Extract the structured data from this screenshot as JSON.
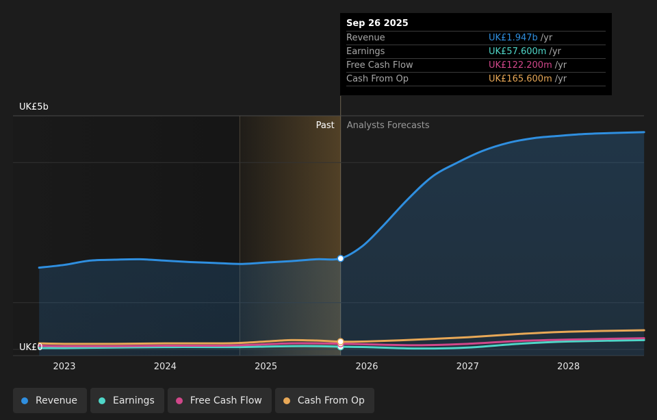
{
  "tooltip": {
    "date": "Sep 26 2025",
    "rows": [
      {
        "label": "Revenue",
        "value": "UK£1.947b",
        "unit": "/yr",
        "color": "#2f8fe0"
      },
      {
        "label": "Earnings",
        "value": "UK£57.600m",
        "unit": "/yr",
        "color": "#4fd6c8"
      },
      {
        "label": "Free Cash Flow",
        "value": "UK£122.200m",
        "unit": "/yr",
        "color": "#d1478a"
      },
      {
        "label": "Cash From Op",
        "value": "UK£165.600m",
        "unit": "/yr",
        "color": "#e8a857"
      }
    ]
  },
  "legend": [
    {
      "label": "Revenue",
      "color": "#2f8fe0"
    },
    {
      "label": "Earnings",
      "color": "#4fd6c8"
    },
    {
      "label": "Free Cash Flow",
      "color": "#d1478a"
    },
    {
      "label": "Cash From Op",
      "color": "#e8a857"
    }
  ],
  "chart_data": {
    "type": "area",
    "y_tick_labels": [
      "UK£5b",
      "UK£0"
    ],
    "ylim": [
      0,
      5
    ],
    "y_unit": "UK£ billions",
    "x_ticks": [
      2023,
      2024,
      2025,
      2026,
      2027,
      2028
    ],
    "xlim": [
      2022.5,
      2028.75
    ],
    "past_label": "Past",
    "forecast_label": "Analysts Forecasts",
    "past_end": 2025.74,
    "highlight_start": 2024.74,
    "grid": true,
    "legend_position": "bottom-left",
    "series": [
      {
        "name": "Revenue",
        "color": "#2f8fe0",
        "x": [
          2022.75,
          2023.0,
          2023.25,
          2023.5,
          2023.75,
          2024.0,
          2024.25,
          2024.5,
          2024.75,
          2025.0,
          2025.25,
          2025.5,
          2025.74,
          2025.95,
          2026.15,
          2026.4,
          2026.65,
          2026.9,
          2027.15,
          2027.4,
          2027.65,
          2027.9,
          2028.15,
          2028.4,
          2028.75
        ],
        "values": [
          1.75,
          1.81,
          1.9,
          1.92,
          1.93,
          1.9,
          1.87,
          1.85,
          1.83,
          1.86,
          1.89,
          1.93,
          1.947,
          2.2,
          2.62,
          3.2,
          3.7,
          4.0,
          4.25,
          4.42,
          4.52,
          4.57,
          4.61,
          4.63,
          4.65
        ]
      },
      {
        "name": "Earnings",
        "color": "#4fd6c8",
        "x": [
          2022.75,
          2023.0,
          2023.5,
          2024.0,
          2024.5,
          2024.75,
          2025.0,
          2025.25,
          2025.5,
          2025.74,
          2026.0,
          2026.5,
          2027.0,
          2027.5,
          2028.0,
          2028.75
        ],
        "values": [
          0.03,
          0.03,
          0.04,
          0.05,
          0.05,
          0.05,
          0.06,
          0.07,
          0.07,
          0.058,
          0.05,
          0.02,
          0.04,
          0.12,
          0.17,
          0.2
        ]
      },
      {
        "name": "Free Cash Flow",
        "color": "#d1478a",
        "x": [
          2022.75,
          2023.0,
          2023.5,
          2024.0,
          2024.5,
          2024.75,
          2025.0,
          2025.25,
          2025.5,
          2025.74,
          2026.0,
          2026.5,
          2027.0,
          2027.5,
          2028.0,
          2028.75
        ],
        "values": [
          0.08,
          0.07,
          0.07,
          0.08,
          0.08,
          0.09,
          0.11,
          0.13,
          0.13,
          0.122,
          0.11,
          0.09,
          0.12,
          0.18,
          0.21,
          0.24
        ]
      },
      {
        "name": "Cash From Op",
        "color": "#e8a857",
        "x": [
          2022.75,
          2023.0,
          2023.5,
          2024.0,
          2024.5,
          2024.75,
          2025.0,
          2025.25,
          2025.5,
          2025.74,
          2026.0,
          2026.5,
          2027.0,
          2027.5,
          2028.0,
          2028.75
        ],
        "values": [
          0.13,
          0.12,
          0.12,
          0.13,
          0.13,
          0.14,
          0.17,
          0.2,
          0.19,
          0.166,
          0.17,
          0.21,
          0.26,
          0.33,
          0.38,
          0.41
        ]
      }
    ]
  }
}
